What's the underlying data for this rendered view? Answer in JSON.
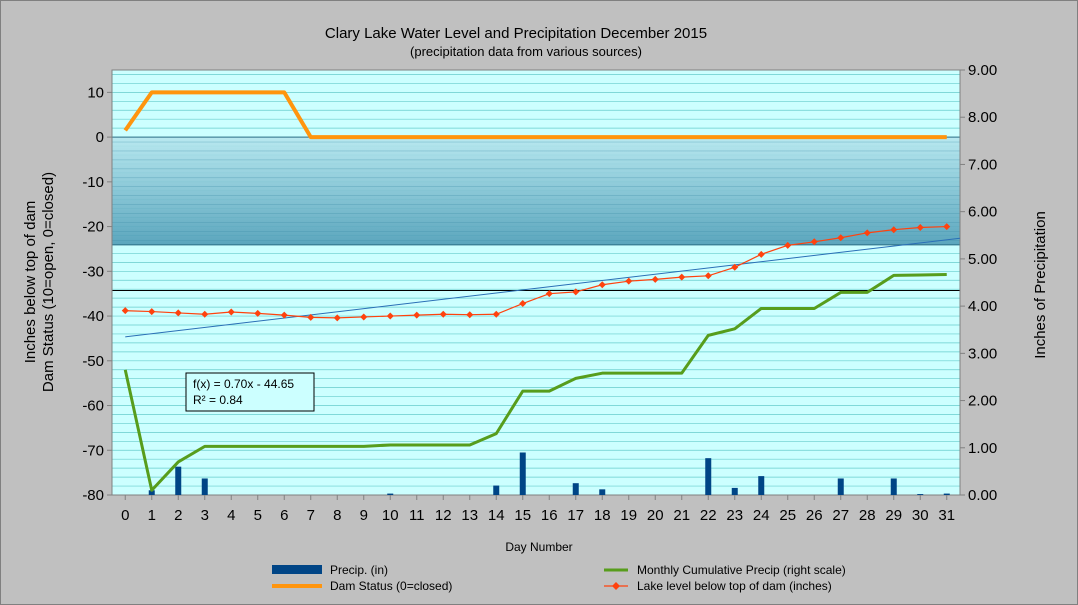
{
  "chart_data": {
    "type": "bar+line",
    "title": "Clary Lake Water Level and Precipitation December 2015",
    "subtitle": "(precipitation data from various sources)",
    "xlabel": "Day Number",
    "ylabel_left": [
      "Inches below top of dam",
      "Dam Status (10=open, 0=closed)"
    ],
    "ylabel_right": "Inches of Precipitation",
    "x_ticks": [
      0,
      1,
      2,
      3,
      4,
      5,
      6,
      7,
      8,
      9,
      10,
      11,
      12,
      13,
      14,
      15,
      16,
      17,
      18,
      19,
      20,
      21,
      22,
      23,
      24,
      25,
      26,
      27,
      28,
      29,
      30,
      31
    ],
    "y_left_ticks": [
      10,
      0,
      -10,
      -20,
      -30,
      -40,
      -50,
      -60,
      -70,
      -80
    ],
    "y_left_range": [
      -80,
      15
    ],
    "y_right_ticks": [
      "9.00",
      "8.00",
      "7.00",
      "6.00",
      "5.00",
      "4.00",
      "3.00",
      "2.00",
      "1.00",
      "0.00"
    ],
    "y_right_range": [
      0,
      9.0
    ],
    "grid": true,
    "legend_position": "bottom",
    "series": [
      {
        "name": "Precip. (in)",
        "type": "bar",
        "axis": "right",
        "color": "#004586",
        "x": [
          1,
          2,
          3,
          10,
          14,
          15,
          17,
          18,
          22,
          23,
          24,
          27,
          29,
          30,
          31
        ],
        "values": [
          0.1,
          0.6,
          0.35,
          0.03,
          0.2,
          0.9,
          0.25,
          0.12,
          0.78,
          0.15,
          0.4,
          0.35,
          0.35,
          0.02,
          0.03
        ]
      },
      {
        "name": "Monthly Cumulative Precip (right scale)",
        "type": "line",
        "axis": "right",
        "color": "#579d1c",
        "x": [
          0,
          1,
          2,
          3,
          4,
          5,
          6,
          7,
          8,
          9,
          10,
          11,
          12,
          13,
          14,
          15,
          16,
          17,
          18,
          19,
          20,
          21,
          22,
          23,
          24,
          25,
          26,
          27,
          28,
          29,
          30,
          31
        ],
        "values": [
          2.65,
          0.1,
          0.7,
          1.03,
          1.03,
          1.03,
          1.03,
          1.03,
          1.03,
          1.03,
          1.06,
          1.06,
          1.06,
          1.06,
          1.3,
          2.2,
          2.2,
          2.47,
          2.58,
          2.58,
          2.58,
          2.58,
          3.38,
          3.52,
          3.95,
          3.95,
          3.95,
          4.29,
          4.29,
          4.65,
          4.66,
          4.67
        ]
      },
      {
        "name": "Dam Status (0=closed)",
        "type": "line",
        "axis": "left",
        "color": "#ff950e",
        "x": [
          0,
          1,
          2,
          3,
          4,
          5,
          6,
          7,
          8,
          9,
          10,
          11,
          12,
          13,
          14,
          15,
          16,
          17,
          18,
          19,
          20,
          21,
          22,
          23,
          24,
          25,
          26,
          27,
          28,
          29,
          30,
          31
        ],
        "values": [
          1.5,
          10,
          10,
          10,
          10,
          10,
          10,
          0,
          0,
          0,
          0,
          0,
          0,
          0,
          0,
          0,
          0,
          0,
          0,
          0,
          0,
          0,
          0,
          0,
          0,
          0,
          0,
          0,
          0,
          0,
          0,
          0
        ]
      },
      {
        "name": "Lake level below top of dam (inches)",
        "type": "line",
        "axis": "left",
        "color": "#ff420e",
        "marker": "diamond",
        "x": [
          0,
          1,
          2,
          3,
          4,
          5,
          6,
          7,
          8,
          9,
          10,
          11,
          12,
          13,
          14,
          15,
          16,
          17,
          18,
          19,
          20,
          21,
          22,
          23,
          24,
          25,
          26,
          27,
          28,
          29,
          30,
          31
        ],
        "values": [
          -38.8,
          -39.0,
          -39.3,
          -39.6,
          -39.1,
          -39.4,
          -39.8,
          -40.3,
          -40.4,
          -40.2,
          -40.0,
          -39.8,
          -39.6,
          -39.7,
          -39.6,
          -37.2,
          -35.0,
          -34.6,
          -33.0,
          -32.2,
          -31.8,
          -31.3,
          -31.0,
          -29.1,
          -26.2,
          -24.2,
          -23.4,
          -22.5,
          -21.4,
          -20.7,
          -20.2,
          -20.0
        ]
      }
    ],
    "trendline": {
      "equation": "f(x) = 0.70x - 44.65",
      "r2": "R² = 0.84",
      "slope": 0.7,
      "intercept": -44.65,
      "color": "#2a6fb6"
    },
    "reference_line_left": -34.3,
    "shaded_band_left": [
      -24.1,
      0
    ],
    "colors": {
      "plot_bg": "#ccffff",
      "grid": "#66cccc",
      "band_top": "#a3dbe6",
      "band_bottom": "#5aa6bd"
    }
  }
}
